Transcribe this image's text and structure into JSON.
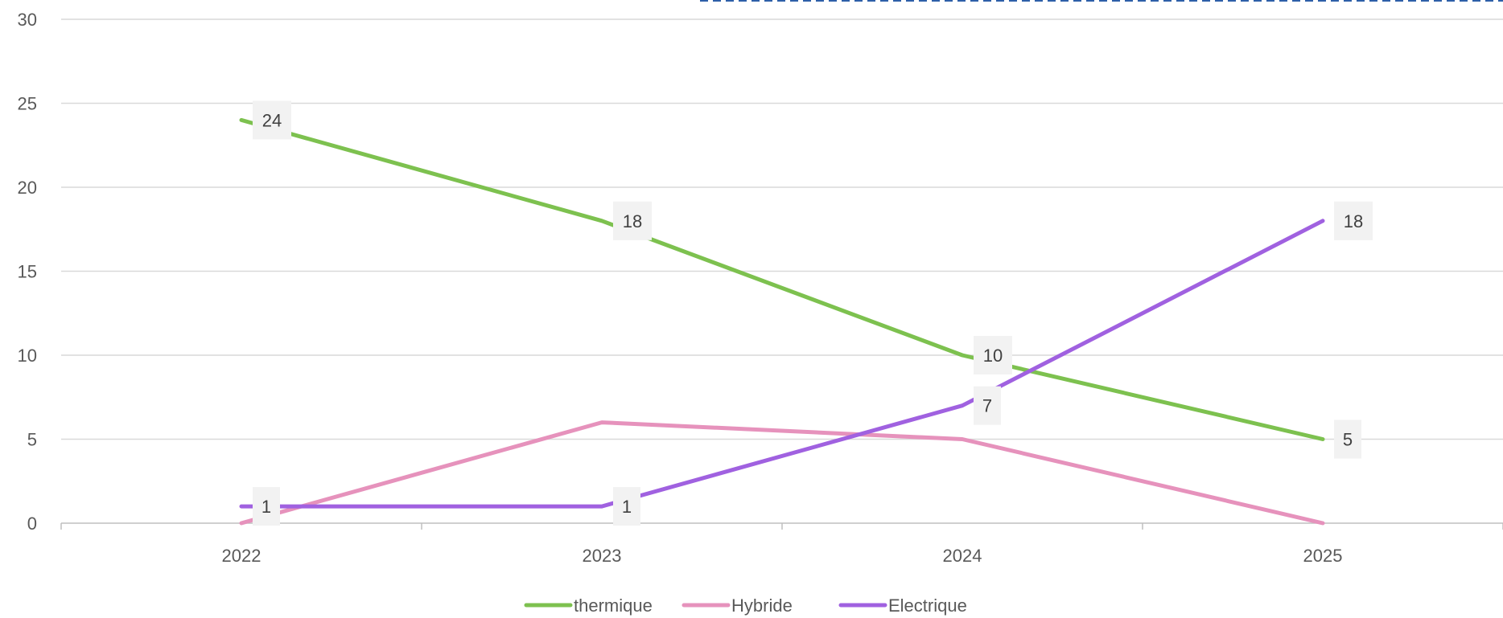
{
  "chart_data": {
    "type": "line",
    "title": "",
    "xlabel": "",
    "ylabel": "",
    "categories": [
      "2022",
      "2023",
      "2024",
      "2025"
    ],
    "ylim": [
      0,
      30
    ],
    "yticks": [
      0,
      5,
      10,
      15,
      20,
      25,
      30
    ],
    "grid": true,
    "legend_position": "bottom",
    "series": [
      {
        "name": "thermique",
        "color": "#7dc14f",
        "values": [
          24,
          18,
          10,
          5
        ],
        "labels": [
          "24",
          "18",
          "10",
          "5"
        ]
      },
      {
        "name": "Hybride",
        "color": "#e692bc",
        "values": [
          0,
          6,
          5,
          0
        ],
        "labels": []
      },
      {
        "name": "Electrique",
        "color": "#a061e0",
        "values": [
          1,
          1,
          7,
          18
        ],
        "labels": [
          "1",
          "1",
          "7",
          "18"
        ]
      }
    ]
  }
}
